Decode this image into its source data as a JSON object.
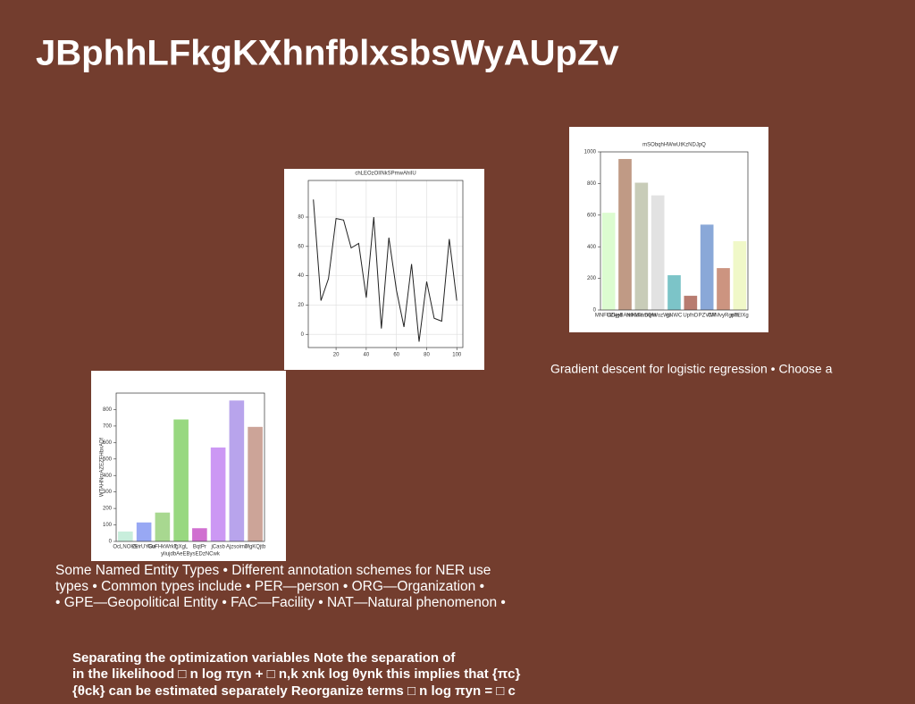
{
  "slide": {
    "title": "JBphhLFkgKXhnfblxsbsWyAUpZv",
    "caption": "Gradient descent for logistic regression • Choose a",
    "body_lines": [
      "Some Named Entity Types • Different annotation schemes for NER use",
      "types • Common types include • PER—person • ORG—Organization •",
      "• GPE—Geopolitical Entity • FAC—Facility • NAT—Natural phenomenon •"
    ],
    "formula_lines": [
      "Separating the optimization variables Note the separation of",
      "in the likelihood □ n log πyn + □ n,k xnk log θynk this implies that {πc}",
      "{θck} can be estimated separately Reorganize terms □ n log πyn = □ c"
    ]
  },
  "chart_data": [
    {
      "type": "line",
      "title": "chLEOzOlINkSPmwAhiIU",
      "color": "#222222",
      "grid": true,
      "x": [
        5,
        10,
        15,
        20,
        25,
        30,
        35,
        40,
        45,
        50,
        55,
        60,
        65,
        70,
        75,
        80,
        85,
        90,
        95,
        100
      ],
      "values": [
        92,
        23,
        38,
        79,
        78,
        59,
        62,
        25,
        80,
        4,
        66,
        30,
        5,
        48,
        -5,
        36,
        11,
        9,
        65,
        23
      ],
      "xlim": [
        1.6,
        104
      ],
      "ylim": [
        -9,
        105
      ],
      "xticks": [
        20,
        40,
        60,
        80,
        100
      ],
      "yticks": [
        0,
        20,
        40,
        60,
        80
      ]
    },
    {
      "type": "bar",
      "title": "mSObqhHWwUtKzNDJpQ",
      "categories": [
        "MNFUZkgd",
        "DGjeBAmHklV",
        "NIKWamQkr",
        "DleWozWu",
        "gNWC",
        "UpfnD",
        "PZVfW",
        "CFMvyRgpm",
        "nTElXg"
      ],
      "values": [
        615,
        955,
        805,
        725,
        220,
        90,
        540,
        265,
        435
      ],
      "colors": [
        "#dcfcd0",
        "#c09a85",
        "#c8ccb8",
        "#e2e2e2",
        "#7cc4c8",
        "#b87c70",
        "#8aa8d8",
        "#cc9480",
        "#f0f8c8"
      ],
      "ylim": [
        0,
        1000
      ],
      "yticks": [
        0,
        200,
        400,
        600,
        800,
        1000
      ]
    },
    {
      "type": "bar",
      "title": null,
      "x_label": "yliujdbAeEBysEDzNCwk",
      "y_label": "WTAHNrxAZEZFHbxADf",
      "categories": [
        "OcLNOKE",
        "ZvirUYOa",
        "GuFHkWrkT",
        "lgXgL",
        "BqtPr",
        "jCasb",
        "AjzsoimJ",
        "MgKQjtb"
      ],
      "values": [
        60,
        115,
        175,
        740,
        80,
        570,
        855,
        695
      ],
      "colors": [
        "#c8eedc",
        "#98a8f4",
        "#a8d890",
        "#98d880",
        "#d070d0",
        "#cc98f4",
        "#b8a4ec",
        "#cca498"
      ],
      "ylim": [
        0,
        900
      ],
      "yticks": [
        0,
        100,
        200,
        300,
        400,
        500,
        600,
        700,
        800
      ]
    }
  ]
}
